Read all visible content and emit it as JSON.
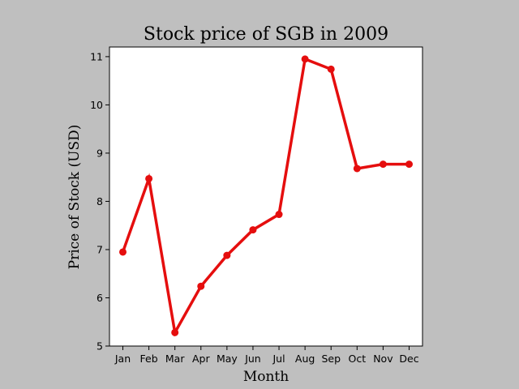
{
  "chart_data": {
    "type": "line",
    "title": "Stock price of SGB in 2009",
    "xlabel": "Month",
    "ylabel": "Price of Stock (USD)",
    "categories": [
      "Jan",
      "Feb",
      "Mar",
      "Apr",
      "May",
      "Jun",
      "Jul",
      "Aug",
      "Sep",
      "Oct",
      "Nov",
      "Dec"
    ],
    "series": [
      {
        "values": [
          6.95,
          8.47,
          5.28,
          6.24,
          6.88,
          7.41,
          7.73,
          10.95,
          10.74,
          8.68,
          8.77,
          8.77
        ],
        "color": "#e50e0e"
      }
    ],
    "ylim": [
      5,
      11.2
    ],
    "yticks": [
      5,
      6,
      7,
      8,
      9,
      10,
      11
    ],
    "grid": false,
    "legend": "none"
  },
  "colors": {
    "background": "#bfbfbf",
    "plot_area": "#ffffff",
    "line": "#e50e0e"
  }
}
